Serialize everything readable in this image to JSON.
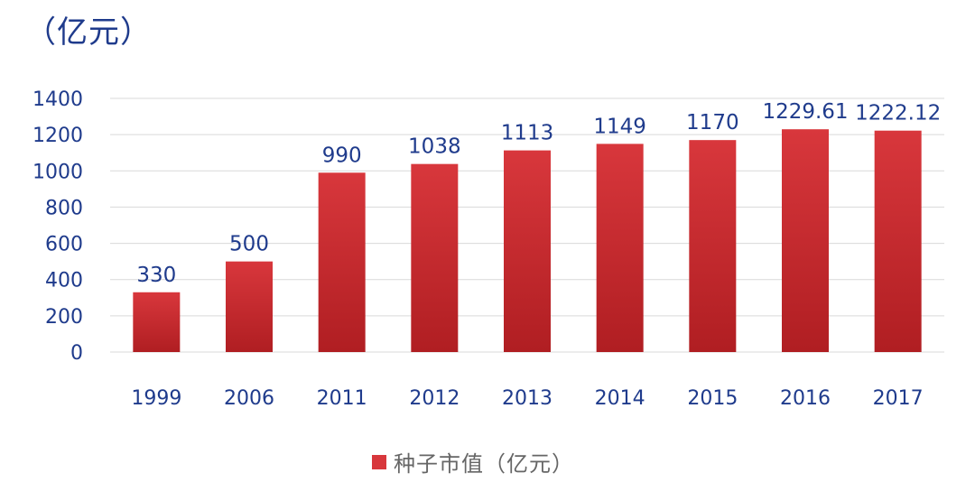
{
  "unit_label": "（亿元）",
  "chart_data": {
    "type": "bar",
    "categories": [
      "1999",
      "2006",
      "2011",
      "2012",
      "2013",
      "2014",
      "2015",
      "2016",
      "2017"
    ],
    "series": [
      {
        "name": "种子市值（亿元）",
        "values": [
          330,
          500,
          990,
          1038,
          1113,
          1149,
          1170,
          1229.61,
          1222.12
        ],
        "labels": [
          "330",
          "500",
          "990",
          "1038",
          "1113",
          "1149",
          "1170",
          "1229.61",
          "1222.12"
        ]
      }
    ],
    "y_ticks": [
      "0",
      "200",
      "400",
      "600",
      "800",
      "1000",
      "1200",
      "1400"
    ],
    "ylim": [
      0,
      1400
    ],
    "grid": true,
    "legend_position": "bottom",
    "bar_color_top": "#d8373c",
    "bar_color_bottom": "#b01e22",
    "text_color": "#1f3b8c",
    "grid_color": "#d9d9d9"
  }
}
